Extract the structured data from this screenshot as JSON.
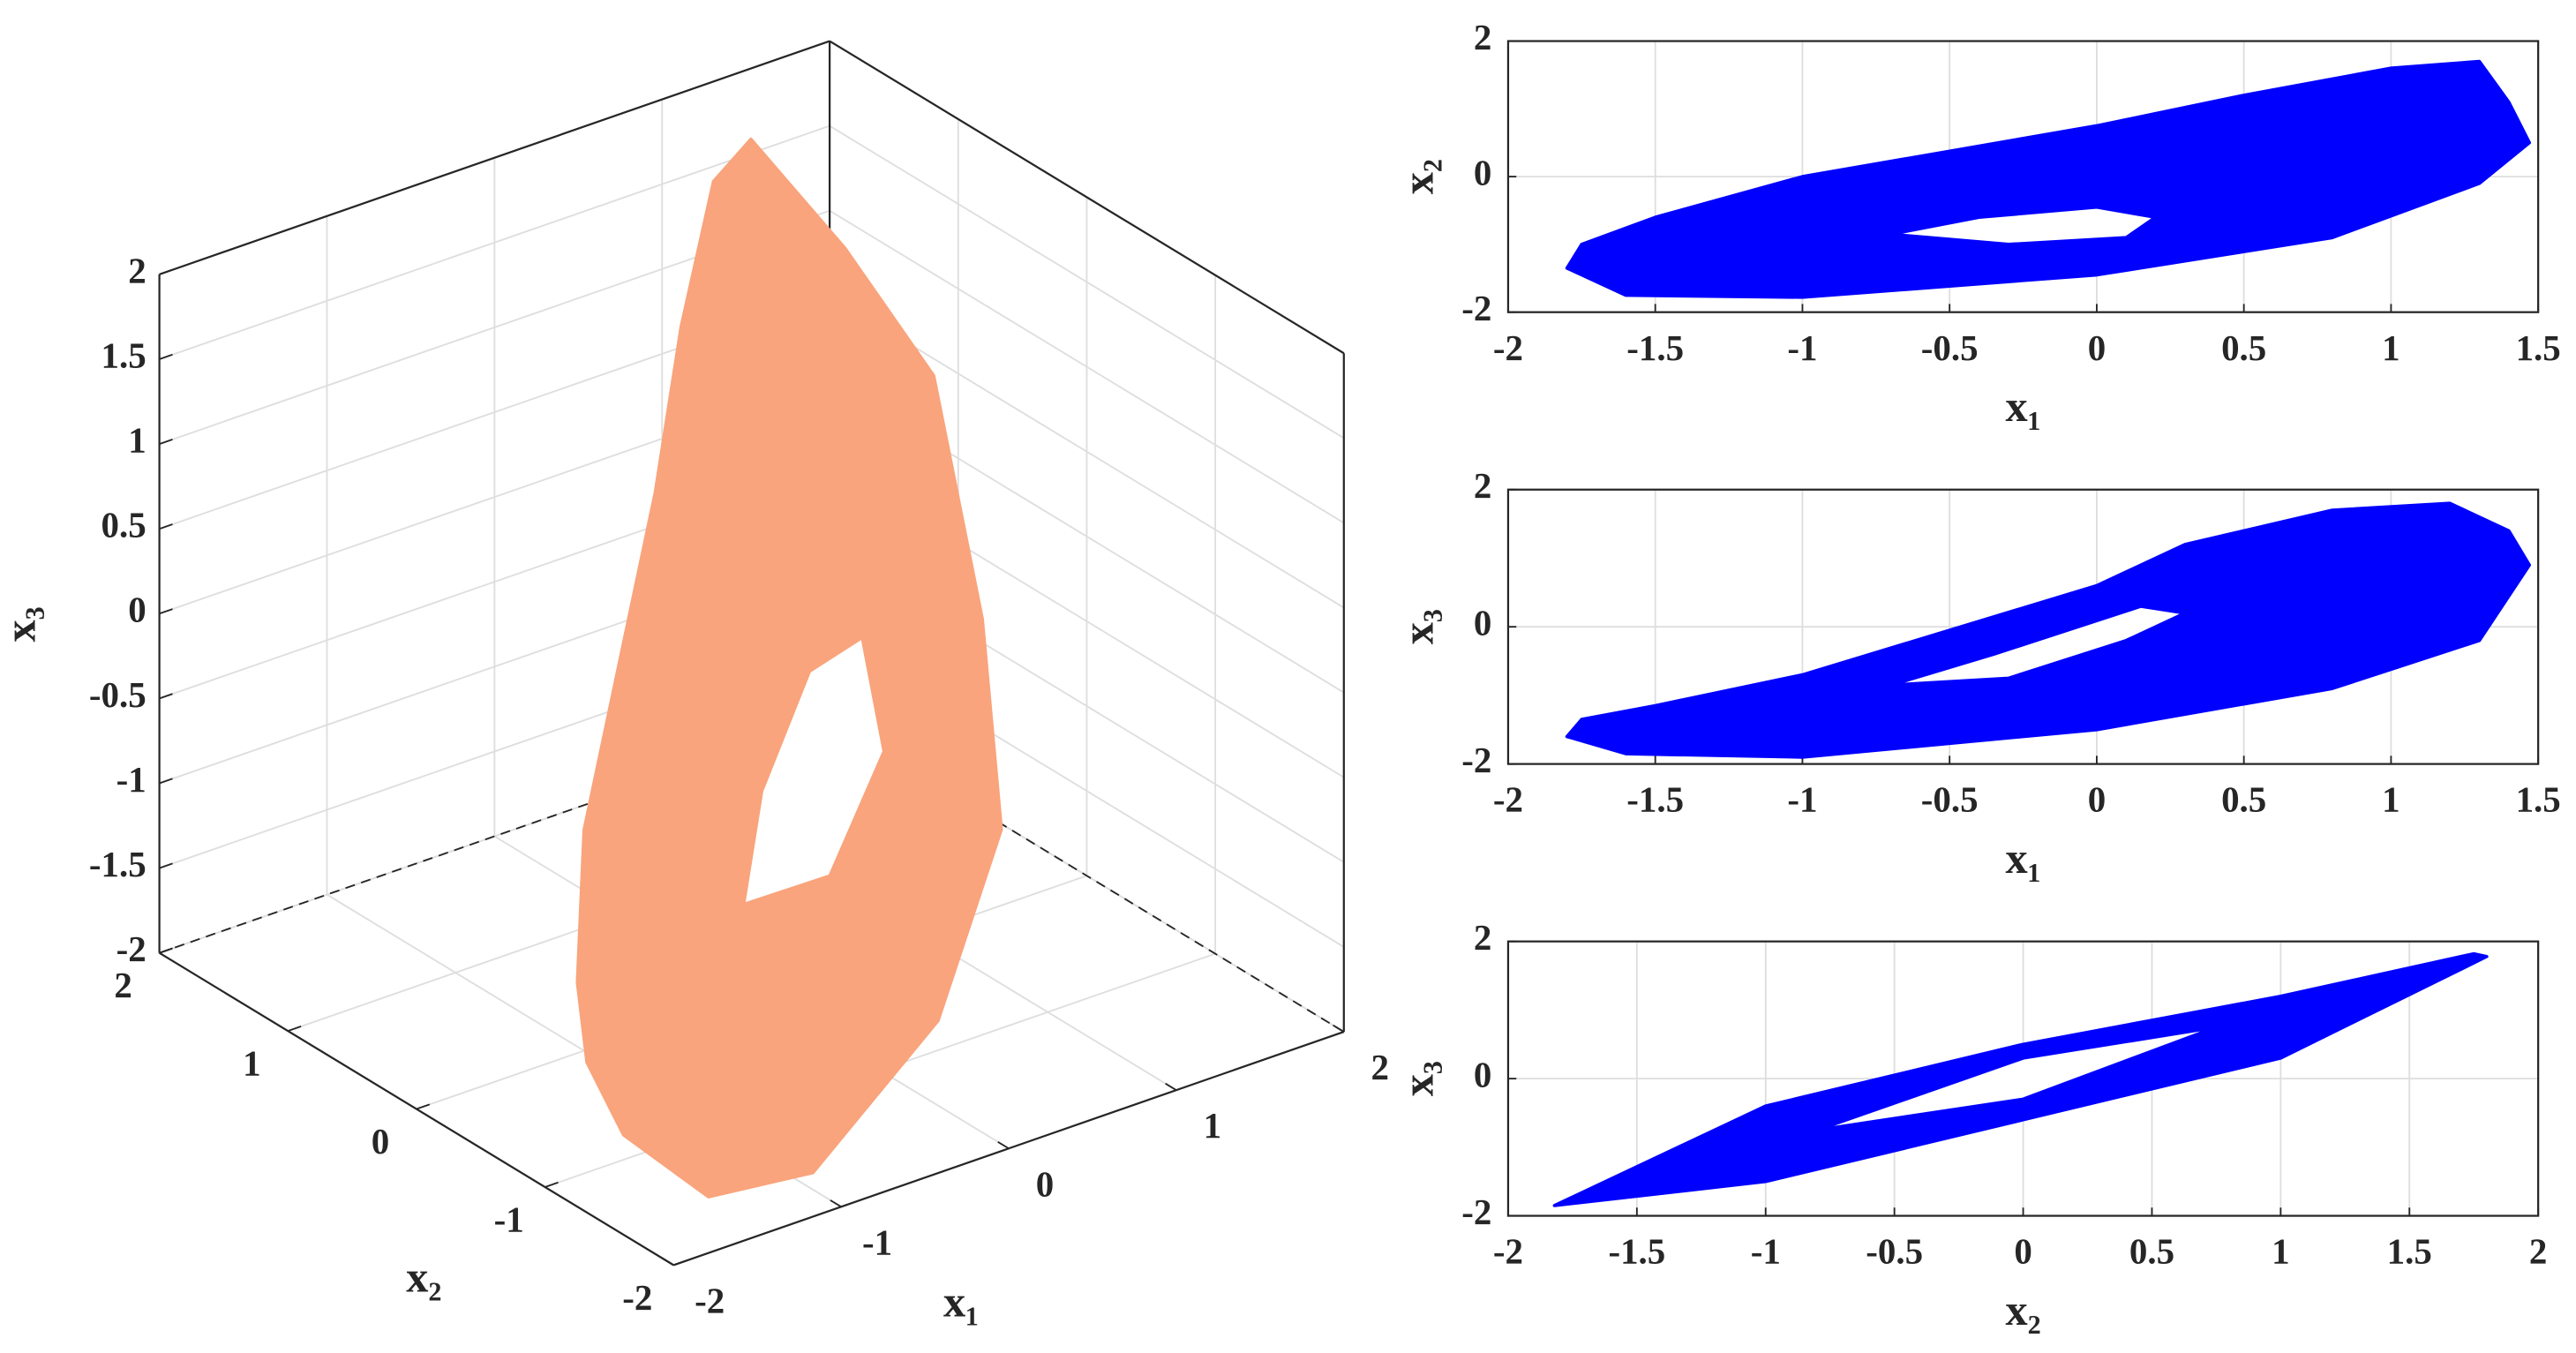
{
  "chart_data": [
    {
      "type": "line3d",
      "xlabel": "x₁",
      "ylabel": "x₂",
      "zlabel": "x₃",
      "xlim": [
        -2,
        2
      ],
      "ylim": [
        -2,
        2
      ],
      "zlim": [
        -2,
        2
      ],
      "xticks": [
        -2,
        -1,
        0,
        1,
        2
      ],
      "yticks": [
        -2,
        -1,
        0,
        1,
        2
      ],
      "zticks": [
        -2,
        -1.5,
        -1,
        -0.5,
        0,
        0.5,
        1,
        1.5,
        2
      ],
      "grid": true,
      "series": [
        {
          "color": "#f9a47c",
          "fill": "#f9a47c",
          "x": [
            -1.8,
            -1.6,
            -1.0,
            0,
            0.8,
            1.3,
            1.47,
            1.4,
            1.3,
            1.0,
            0.5,
            0,
            -1.0,
            -1.5,
            -1.75
          ],
          "y": [
            -1.35,
            -1.75,
            -1.78,
            -1.45,
            -0.9,
            -0.1,
            0.5,
            1.1,
            1.7,
            1.6,
            1.2,
            0.75,
            0.0,
            -0.6,
            -1.0
          ],
          "z": [
            -1.6,
            -1.85,
            -1.9,
            -1.5,
            -0.9,
            -0.2,
            0.9,
            1.4,
            1.8,
            1.7,
            1.2,
            0.6,
            -0.7,
            -1.15,
            -1.35
          ]
        },
        {
          "color": "#f9a47c",
          "fill": "#ffffff",
          "x": [
            -0.7,
            -0.3,
            0.1,
            0.2,
            0.0,
            -0.4
          ],
          "y": [
            -0.85,
            -1.0,
            -0.9,
            -0.6,
            -0.45,
            -0.6
          ],
          "z": [
            -0.85,
            -0.75,
            -0.2,
            0.3,
            0.1,
            -0.4
          ]
        }
      ]
    },
    {
      "type": "line",
      "xlabel": "x₁",
      "ylabel": "x₂",
      "xlim": [
        -2,
        1.5
      ],
      "ylim": [
        -2,
        2
      ],
      "xticks": [
        -2,
        -1.5,
        -1,
        -0.5,
        0,
        0.5,
        1,
        1.5
      ],
      "yticks": [
        -2,
        0,
        2
      ],
      "grid": true,
      "series": [
        {
          "color": "#0000ff",
          "fill": "#0000ff",
          "x": [
            -1.8,
            -1.6,
            -1.0,
            0,
            0.8,
            1.3,
            1.47,
            1.4,
            1.3,
            1.0,
            0.5,
            0,
            -1.0,
            -1.5,
            -1.75
          ],
          "values": [
            -1.35,
            -1.75,
            -1.78,
            -1.45,
            -0.9,
            -0.1,
            0.5,
            1.1,
            1.7,
            1.6,
            1.2,
            0.75,
            0.0,
            -0.6,
            -1.0
          ]
        },
        {
          "color": "#0000ff",
          "fill": "#ffffff",
          "x": [
            -0.7,
            -0.3,
            0.1,
            0.2,
            0.0,
            -0.4
          ],
          "values": [
            -0.85,
            -1.0,
            -0.9,
            -0.6,
            -0.45,
            -0.6
          ]
        }
      ]
    },
    {
      "type": "line",
      "xlabel": "x₁",
      "ylabel": "x₃",
      "xlim": [
        -2,
        1.5
      ],
      "ylim": [
        -2,
        2
      ],
      "xticks": [
        -2,
        -1.5,
        -1,
        -0.5,
        0,
        0.5,
        1,
        1.5
      ],
      "yticks": [
        -2,
        0,
        2
      ],
      "grid": true,
      "series": [
        {
          "color": "#0000ff",
          "fill": "#0000ff",
          "x": [
            -1.8,
            -1.6,
            -1.0,
            0,
            0.8,
            1.3,
            1.47,
            1.4,
            1.2,
            0.8,
            0.3,
            0,
            -1.0,
            -1.5,
            -1.75
          ],
          "values": [
            -1.6,
            -1.85,
            -1.9,
            -1.5,
            -0.9,
            -0.2,
            0.9,
            1.4,
            1.8,
            1.7,
            1.2,
            0.6,
            -0.7,
            -1.15,
            -1.35
          ]
        },
        {
          "color": "#0000ff",
          "fill": "#ffffff",
          "x": [
            -0.7,
            -0.3,
            0.1,
            0.3,
            0.15,
            -0.35
          ],
          "values": [
            -0.85,
            -0.75,
            -0.2,
            0.2,
            0.3,
            -0.4
          ]
        }
      ]
    },
    {
      "type": "line",
      "xlabel": "x₂",
      "ylabel": "x₃",
      "xlim": [
        -2,
        2
      ],
      "ylim": [
        -2,
        2
      ],
      "xticks": [
        -2,
        -1.5,
        -1,
        -0.5,
        0,
        0.5,
        1,
        1.5,
        2
      ],
      "yticks": [
        -2,
        0,
        2
      ],
      "grid": true,
      "series": [
        {
          "color": "#0000ff",
          "fill": "#0000ff",
          "x": [
            -1.82,
            -1,
            0,
            1,
            1.8,
            1.75,
            1,
            0,
            -1
          ],
          "values": [
            -1.85,
            -1.5,
            -0.6,
            0.3,
            1.78,
            1.82,
            1.2,
            0.5,
            -0.4
          ]
        },
        {
          "color": "#0000ff",
          "fill": "#ffffff",
          "x": [
            -0.8,
            0,
            0.75,
            0
          ],
          "values": [
            -0.75,
            -0.3,
            0.75,
            0.3
          ]
        }
      ]
    }
  ]
}
